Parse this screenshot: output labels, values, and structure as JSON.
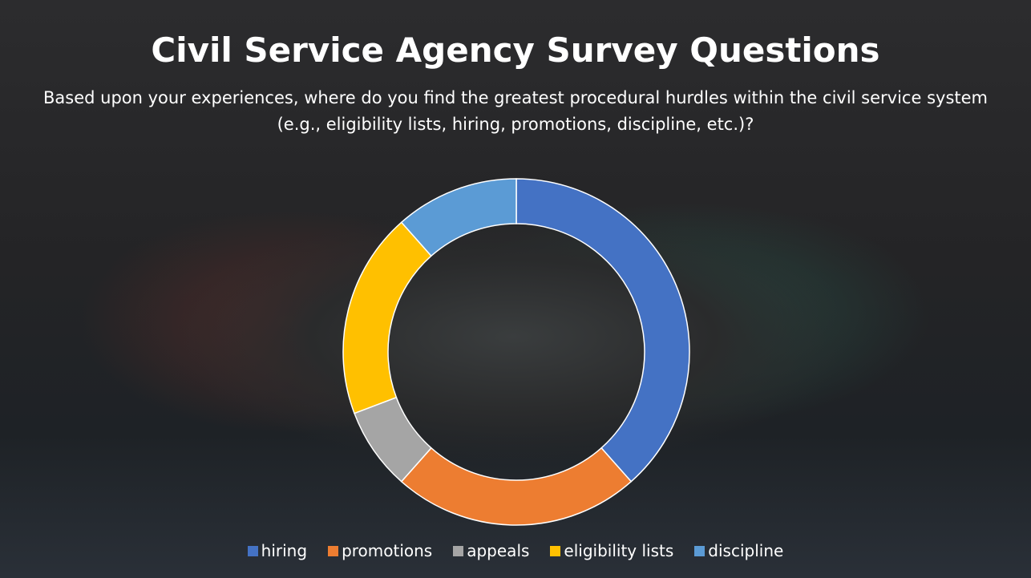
{
  "chart_data": {
    "type": "donut",
    "title": "Civil Service Agency Survey Questions",
    "subtitle": "Based upon your experiences, where do you find the greatest procedural hurdles within the civil service system (e.g., eligibility lists, hiring, promotions, discipline, etc.)?",
    "categories": [
      "hiring",
      "promotions",
      "appeals",
      "eligibility lists",
      "discipline"
    ],
    "values": [
      10,
      6,
      2,
      5,
      3
    ],
    "colors": [
      "#4472c4",
      "#ed7d31",
      "#a5a5a5",
      "#ffc000",
      "#5b9bd5"
    ],
    "legend": "bottom"
  }
}
